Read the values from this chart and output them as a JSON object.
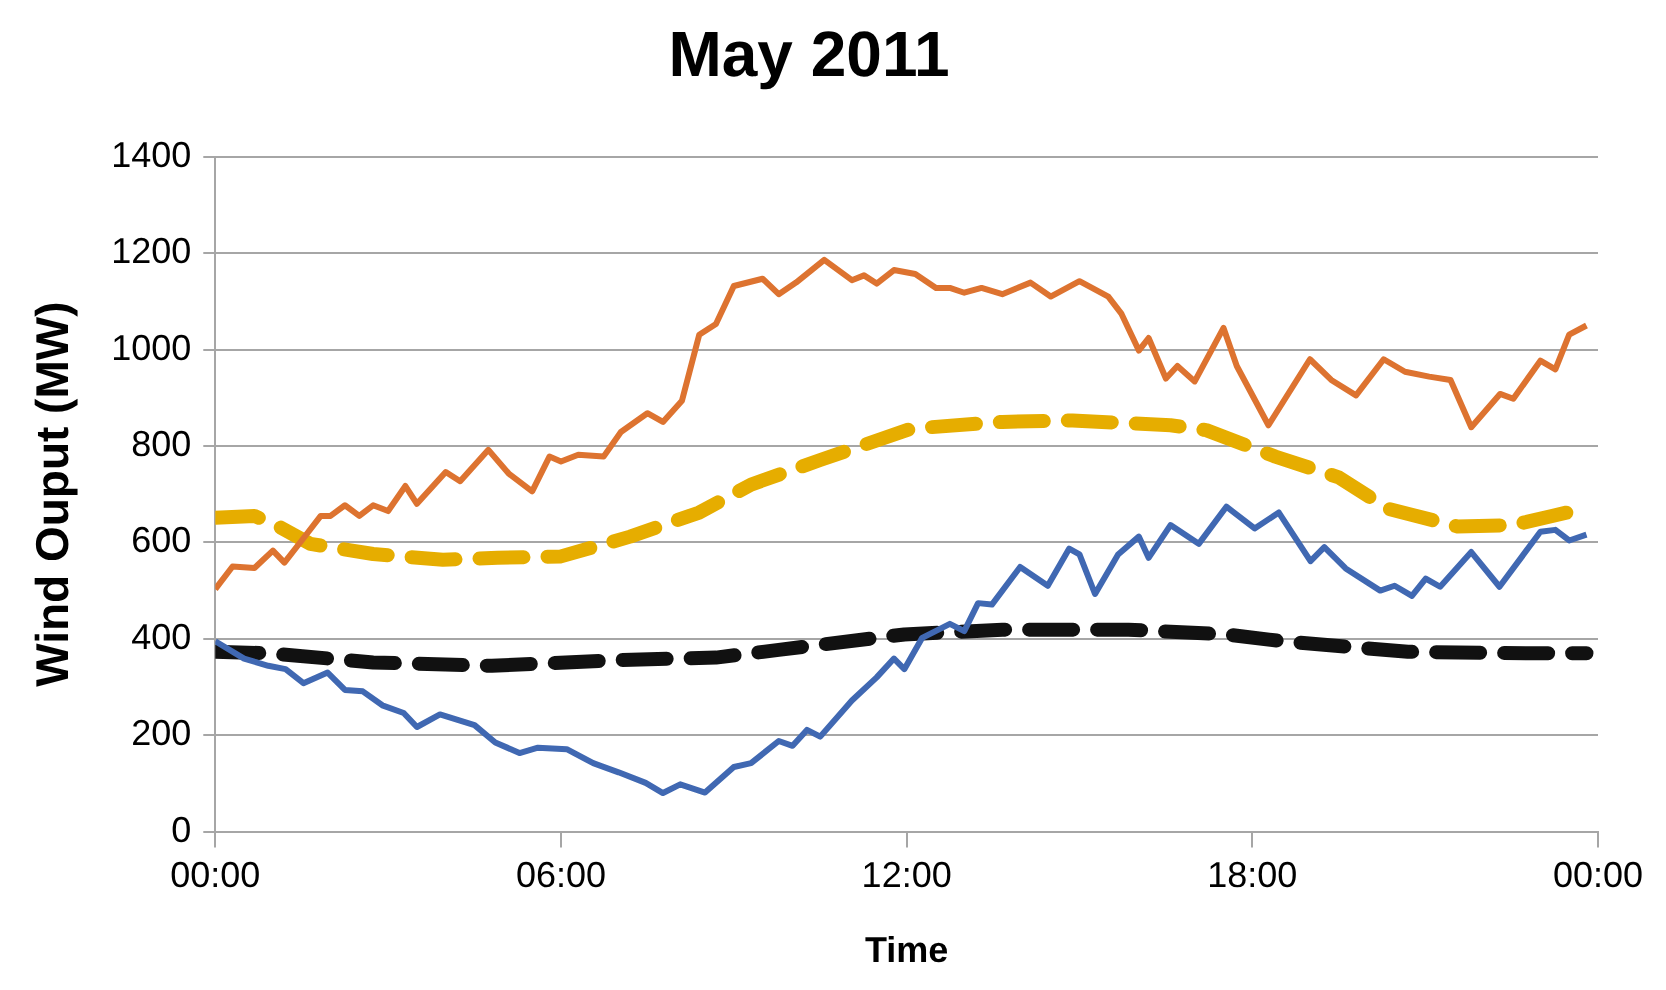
{
  "chart_data": {
    "type": "line",
    "title": "May 2011",
    "xlabel": "Time",
    "ylabel": "Wind Ouput (MW)",
    "xlim": [
      0,
      24
    ],
    "xticks": [
      {
        "value": 0,
        "label": "00:00"
      },
      {
        "value": 6,
        "label": "06:00"
      },
      {
        "value": 12,
        "label": "12:00"
      },
      {
        "value": 18,
        "label": "18:00"
      },
      {
        "value": 24,
        "label": "00:00"
      }
    ],
    "ylim": [
      0,
      1400
    ],
    "yticks": [
      0,
      200,
      400,
      600,
      800,
      1000,
      1200,
      1400
    ],
    "grid": "y",
    "legend": false,
    "marker": "none",
    "series": [
      {
        "color": "#dd7330",
        "line_style": "solid",
        "x": [
          0,
          0.3,
          0.68,
          1,
          1.2,
          1.5,
          1.83,
          2,
          2.25,
          2.5,
          2.74,
          3,
          3.3,
          3.5,
          4,
          4.25,
          4.74,
          5.1,
          5.5,
          5.8,
          6,
          6.3,
          6.74,
          7.04,
          7.5,
          7.77,
          8.1,
          8.4,
          8.69,
          9,
          9.5,
          9.78,
          10.08,
          10.57,
          11.05,
          11.26,
          11.48,
          11.78,
          12.15,
          12.51,
          12.75,
          13,
          13.3,
          13.66,
          14.15,
          14.5,
          15,
          15.5,
          15.73,
          16.03,
          16.2,
          16.5,
          16.7,
          17,
          17.5,
          17.73,
          18.28,
          19,
          19.37,
          19.8,
          20.28,
          20.65,
          21.07,
          21.44,
          21.8,
          22.3,
          22.53,
          23,
          23.26,
          23.5,
          23.8
        ],
        "values": [
          503,
          550,
          547,
          583,
          558,
          604,
          655,
          655,
          677,
          655,
          677,
          665,
          717,
          680,
          746,
          727,
          792,
          742,
          706,
          778,
          768,
          782,
          778,
          829,
          868,
          850,
          894,
          1031,
          1053,
          1132,
          1147,
          1115,
          1139,
          1186,
          1144,
          1154,
          1137,
          1165,
          1157,
          1128,
          1128,
          1118,
          1128,
          1115,
          1139,
          1110,
          1142,
          1110,
          1074,
          998,
          1024,
          940,
          966,
          934,
          1045,
          966,
          843,
          980,
          937,
          905,
          980,
          954,
          944,
          937,
          839,
          908,
          898,
          977,
          959,
          1031,
          1050
        ]
      },
      {
        "color": "#4068b2",
        "line_style": "solid",
        "x": [
          0,
          0.5,
          0.92,
          1.22,
          1.53,
          1.95,
          2.25,
          2.56,
          2.9,
          3.27,
          3.5,
          3.9,
          4.5,
          4.86,
          5.28,
          5.6,
          6.1,
          6.56,
          7,
          7.47,
          7.77,
          8.07,
          8.5,
          9,
          9.3,
          9.78,
          10.02,
          10.27,
          10.5,
          11.05,
          11.48,
          11.78,
          11.96,
          12.27,
          12.75,
          13,
          13.24,
          13.48,
          13.97,
          14.45,
          14.82,
          15,
          15.27,
          15.67,
          16.03,
          16.2,
          16.58,
          17.07,
          17.55,
          18.04,
          18.46,
          19.01,
          19.25,
          19.62,
          20.22,
          20.47,
          20.77,
          21.01,
          21.26,
          21.8,
          22.29,
          23,
          23.26,
          23.5,
          23.8
        ],
        "values": [
          395,
          359,
          344,
          337,
          308,
          330,
          294,
          291,
          262,
          246,
          217,
          243,
          221,
          185,
          163,
          174,
          171,
          142,
          123,
          101,
          80,
          98,
          81,
          134,
          142,
          188,
          178,
          211,
          197,
          272,
          320,
          359,
          337,
          402,
          431,
          416,
          474,
          471,
          549,
          510,
          587,
          575,
          493,
          575,
          612,
          568,
          636,
          597,
          674,
          629,
          662,
          561,
          590,
          546,
          500,
          510,
          489,
          525,
          508,
          580,
          508,
          622,
          626,
          604,
          616
        ]
      },
      {
        "color": "#e6ad00",
        "line_style": "dashed",
        "x": [
          0,
          0.68,
          1.1,
          1.65,
          2.74,
          3.95,
          4.9,
          6,
          7.2,
          8.4,
          9.3,
          10.5,
          12.08,
          13.66,
          14.88,
          16.58,
          17.2,
          18.4,
          19.5,
          20.35,
          21.56,
          22.53,
          23.75
        ],
        "values": [
          651,
          655,
          633,
          597,
          576,
          564,
          568,
          571,
          612,
          662,
          720,
          771,
          836,
          850,
          853,
          843,
          833,
          778,
          735,
          670,
          633,
          636,
          670
        ]
      },
      {
        "color": "#111111",
        "line_style": "dashed",
        "x": [
          0,
          0.92,
          2.74,
          4.8,
          7,
          8.69,
          9.78,
          11.96,
          13.66,
          15.85,
          17.55,
          18.52,
          20.7,
          22.89,
          23.8
        ],
        "values": [
          373,
          370,
          351,
          344,
          356,
          361,
          377,
          409,
          419,
          419,
          409,
          395,
          373,
          370,
          370
        ]
      }
    ]
  }
}
